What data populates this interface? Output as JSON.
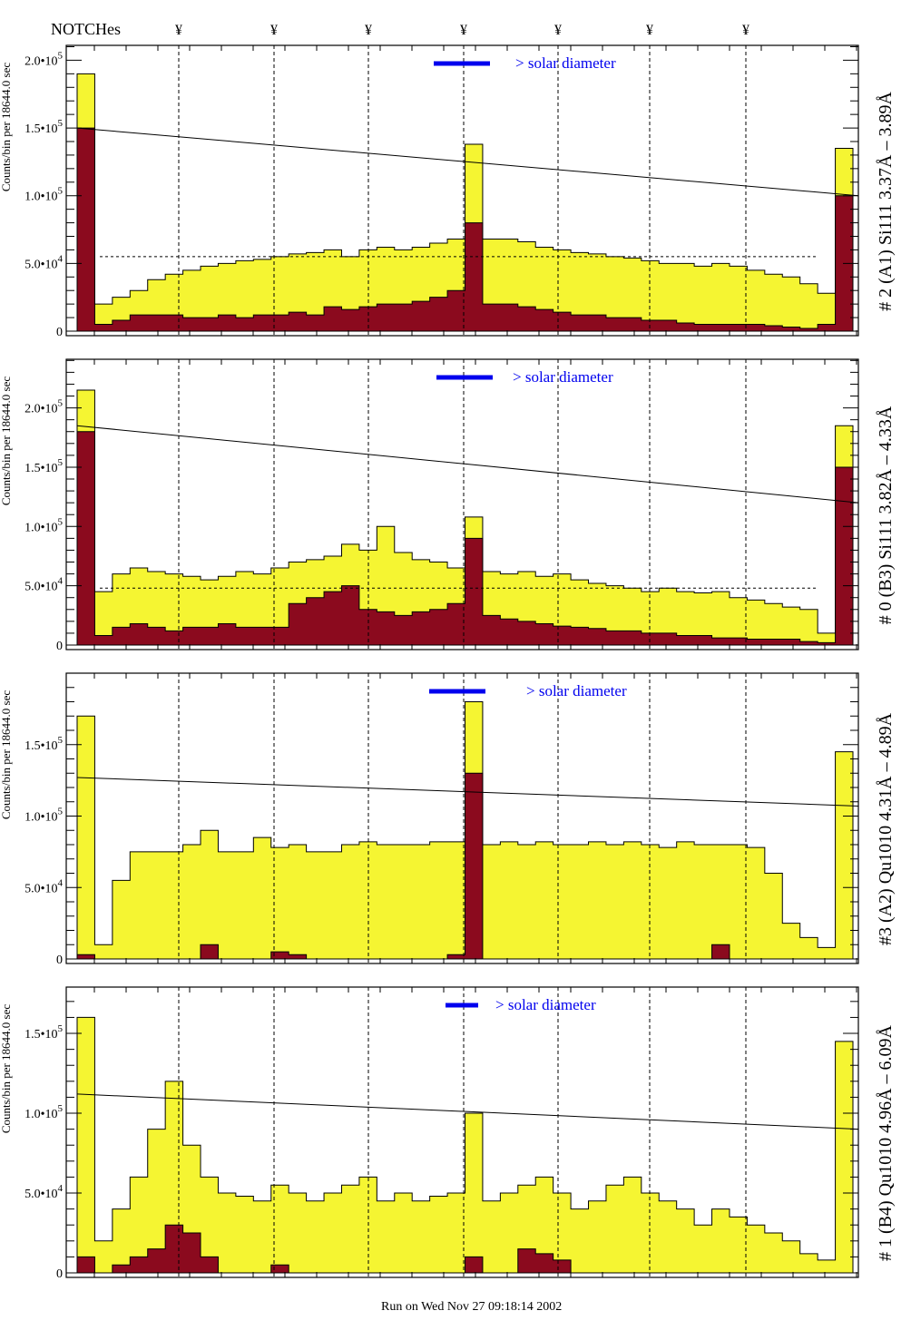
{
  "header": {
    "title": "NOTCHes",
    "notch_marker": "¥"
  },
  "footer": {
    "run_text": "Run on Wed Nov 27 09:18:14 2002"
  },
  "colors": {
    "total": "#f5f532",
    "subset": "#8b0a1e",
    "legend": "#0000ee",
    "fit": "#000000"
  },
  "chart_data": [
    {
      "type": "bar",
      "title": "# 2 (A1) Si111  3.37Å – 3.89Å",
      "ylabel": "Counts/bin per  18644.0 sec",
      "legend": "> solar diameter",
      "ylim": [
        0,
        211000
      ],
      "yticks": [
        {
          "m": "0",
          "e": ""
        },
        {
          "m": "5.0•10",
          "e": "4"
        },
        {
          "m": "1.0•10",
          "e": "5"
        },
        {
          "m": "1.5•10",
          "e": "5"
        },
        {
          "m": "2.0•10",
          "e": "5"
        }
      ],
      "ytick_values": [
        0,
        50000,
        100000,
        150000,
        200000
      ],
      "fit_line": [
        150000,
        100000
      ],
      "level": 55000,
      "series": [
        {
          "name": "total",
          "values": [
            190,
            20,
            25,
            30,
            38,
            42,
            45,
            48,
            50,
            52,
            53,
            55,
            57,
            58,
            60,
            55,
            60,
            62,
            60,
            62,
            65,
            68,
            138,
            68,
            68,
            66,
            62,
            60,
            58,
            57,
            55,
            54,
            52,
            50,
            50,
            48,
            50,
            48,
            45,
            42,
            40,
            35,
            28,
            135
          ]
        },
        {
          "name": "subset",
          "values": [
            150,
            5,
            8,
            12,
            12,
            12,
            10,
            10,
            12,
            10,
            12,
            12,
            14,
            12,
            18,
            16,
            18,
            20,
            20,
            22,
            25,
            30,
            80,
            20,
            20,
            18,
            16,
            14,
            12,
            12,
            10,
            10,
            8,
            8,
            6,
            5,
            5,
            5,
            5,
            4,
            3,
            2,
            5,
            100
          ]
        }
      ]
    },
    {
      "type": "bar",
      "title": "# 0 (B3) Si111  3.82Å – 4.33Å",
      "ylabel": "Counts/bin per  18644.0 sec",
      "legend": "> solar diameter",
      "ylim": [
        0,
        241000
      ],
      "yticks": [
        {
          "m": "0",
          "e": ""
        },
        {
          "m": "5.0•10",
          "e": "4"
        },
        {
          "m": "1.0•10",
          "e": "5"
        },
        {
          "m": "1.5•10",
          "e": "5"
        },
        {
          "m": "2.0•10",
          "e": "5"
        }
      ],
      "ytick_values": [
        0,
        50000,
        100000,
        150000,
        200000
      ],
      "fit_line": [
        185000,
        120000
      ],
      "level": 48000,
      "series": [
        {
          "name": "total",
          "values": [
            215,
            45,
            60,
            65,
            62,
            60,
            58,
            55,
            58,
            62,
            60,
            65,
            70,
            72,
            75,
            85,
            80,
            100,
            78,
            72,
            70,
            65,
            108,
            62,
            60,
            62,
            58,
            60,
            55,
            52,
            50,
            48,
            45,
            48,
            45,
            44,
            45,
            40,
            38,
            35,
            32,
            30,
            10,
            185
          ]
        },
        {
          "name": "subset",
          "values": [
            180,
            8,
            15,
            18,
            15,
            12,
            15,
            15,
            18,
            15,
            15,
            15,
            35,
            40,
            45,
            50,
            30,
            28,
            25,
            28,
            30,
            35,
            90,
            25,
            22,
            20,
            18,
            16,
            15,
            14,
            12,
            12,
            10,
            10,
            8,
            8,
            6,
            6,
            5,
            5,
            5,
            3,
            2,
            150
          ]
        }
      ]
    },
    {
      "type": "bar",
      "title": "#3 (A2) Qu1010  4.31Å – 4.89Å",
      "ylabel": "Counts/bin per  18644.0 sec",
      "legend": "> solar diameter",
      "ylim": [
        0,
        200000
      ],
      "yticks": [
        {
          "m": "0",
          "e": ""
        },
        {
          "m": "5.0•10",
          "e": "4"
        },
        {
          "m": "1.0•10",
          "e": "5"
        },
        {
          "m": "1.5•10",
          "e": "5"
        }
      ],
      "ytick_values": [
        0,
        50000,
        100000,
        150000
      ],
      "fit_line": [
        127000,
        107000
      ],
      "level": null,
      "series": [
        {
          "name": "total",
          "values": [
            170,
            10,
            55,
            75,
            75,
            75,
            80,
            90,
            75,
            75,
            85,
            78,
            80,
            75,
            75,
            80,
            82,
            80,
            80,
            80,
            82,
            82,
            180,
            80,
            82,
            80,
            82,
            80,
            80,
            82,
            80,
            82,
            80,
            78,
            82,
            80,
            80,
            80,
            78,
            60,
            25,
            15,
            8,
            145
          ]
        },
        {
          "name": "subset",
          "values": [
            3,
            0,
            0,
            0,
            0,
            0,
            0,
            10,
            0,
            0,
            0,
            5,
            3,
            0,
            0,
            0,
            0,
            0,
            0,
            0,
            0,
            3,
            130,
            0,
            0,
            0,
            0,
            0,
            0,
            0,
            0,
            0,
            0,
            0,
            0,
            0,
            10,
            0,
            0,
            0,
            0,
            0,
            0,
            0
          ]
        }
      ]
    },
    {
      "type": "bar",
      "title": "# 1 (B4) Qu1010 4.96Å – 6.09Å",
      "ylabel": "Counts/bin per  18644.0 sec",
      "legend": "> solar diameter",
      "ylim": [
        0,
        179000
      ],
      "yticks": [
        {
          "m": "0",
          "e": ""
        },
        {
          "m": "5.0•10",
          "e": "4"
        },
        {
          "m": "1.0•10",
          "e": "5"
        },
        {
          "m": "1.5•10",
          "e": "5"
        }
      ],
      "ytick_values": [
        0,
        50000,
        100000,
        150000
      ],
      "fit_line": [
        112000,
        90000
      ],
      "level": null,
      "series": [
        {
          "name": "total",
          "values": [
            160,
            20,
            40,
            60,
            90,
            120,
            80,
            60,
            50,
            48,
            45,
            55,
            50,
            45,
            50,
            55,
            60,
            45,
            50,
            45,
            48,
            50,
            100,
            45,
            50,
            55,
            60,
            50,
            40,
            45,
            55,
            60,
            50,
            45,
            40,
            30,
            40,
            35,
            30,
            25,
            20,
            12,
            8,
            145
          ]
        },
        {
          "name": "subset",
          "values": [
            10,
            0,
            5,
            10,
            15,
            30,
            25,
            10,
            0,
            0,
            0,
            5,
            0,
            0,
            0,
            0,
            0,
            0,
            0,
            0,
            0,
            0,
            10,
            0,
            0,
            15,
            12,
            8,
            0,
            0,
            0,
            0,
            0,
            0,
            0,
            0,
            0,
            0,
            0,
            0,
            0,
            0,
            0,
            0
          ]
        }
      ]
    }
  ]
}
